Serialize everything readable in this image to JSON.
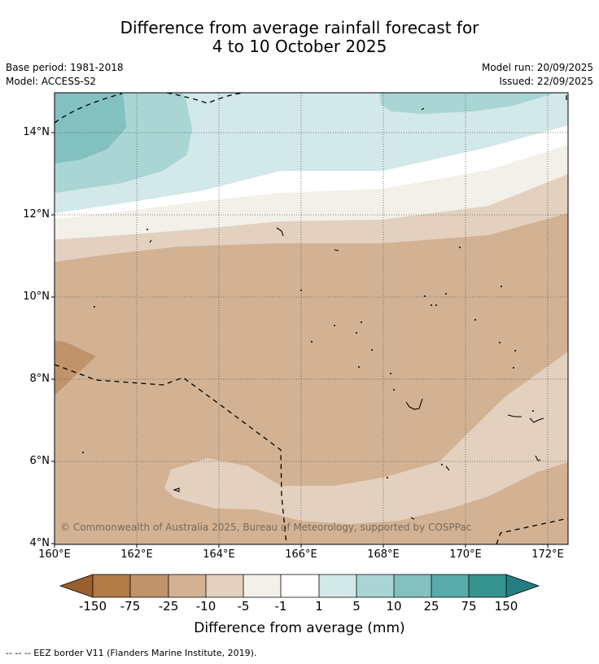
{
  "title": {
    "line1": "Difference from average rainfall forecast for",
    "line2": "4 to 10 October 2025"
  },
  "info": {
    "base_period": "Base period: 1981-2018",
    "model": "Model: ACCESS-S2",
    "model_run": "Model run: 20/09/2025",
    "issued": "Issued: 22/09/2025"
  },
  "map": {
    "lat_labels": [
      "14°N",
      "12°N",
      "10°N",
      "8°N",
      "6°N",
      "4°N"
    ],
    "lon_labels": [
      "160°E",
      "162°E",
      "164°E",
      "166°E",
      "168°E",
      "170°E",
      "172°E"
    ],
    "copyright": "© Commonwealth of Australia 2025, Bureau of Meteorology, supported by COSPPac"
  },
  "colorbar": {
    "title": "Difference from average (mm)",
    "labels": [
      "-150",
      "-75",
      "-25",
      "-10",
      "-5",
      "-1",
      "1",
      "5",
      "10",
      "25",
      "75",
      "150"
    ],
    "colors": {
      "lt_neg150": "#9a5f2e",
      "neg150_75": "#b07b45",
      "neg75_25": "#c0936a",
      "neg25_10": "#d2b293",
      "neg10_5": "#e3d0bf",
      "neg5_1": "#f3efe9",
      "neg1_1": "#ffffff",
      "p1_5": "#d3e8e8",
      "p5_10": "#a9d5d5",
      "p10_25": "#83c0c0",
      "p25_75": "#59aaab",
      "p75_150": "#36948f",
      "gt150": "#257f82"
    }
  },
  "legend": {
    "eez": "--  --  -- EEZ border V11 (Flanders Marine Institute, 2019)."
  }
}
